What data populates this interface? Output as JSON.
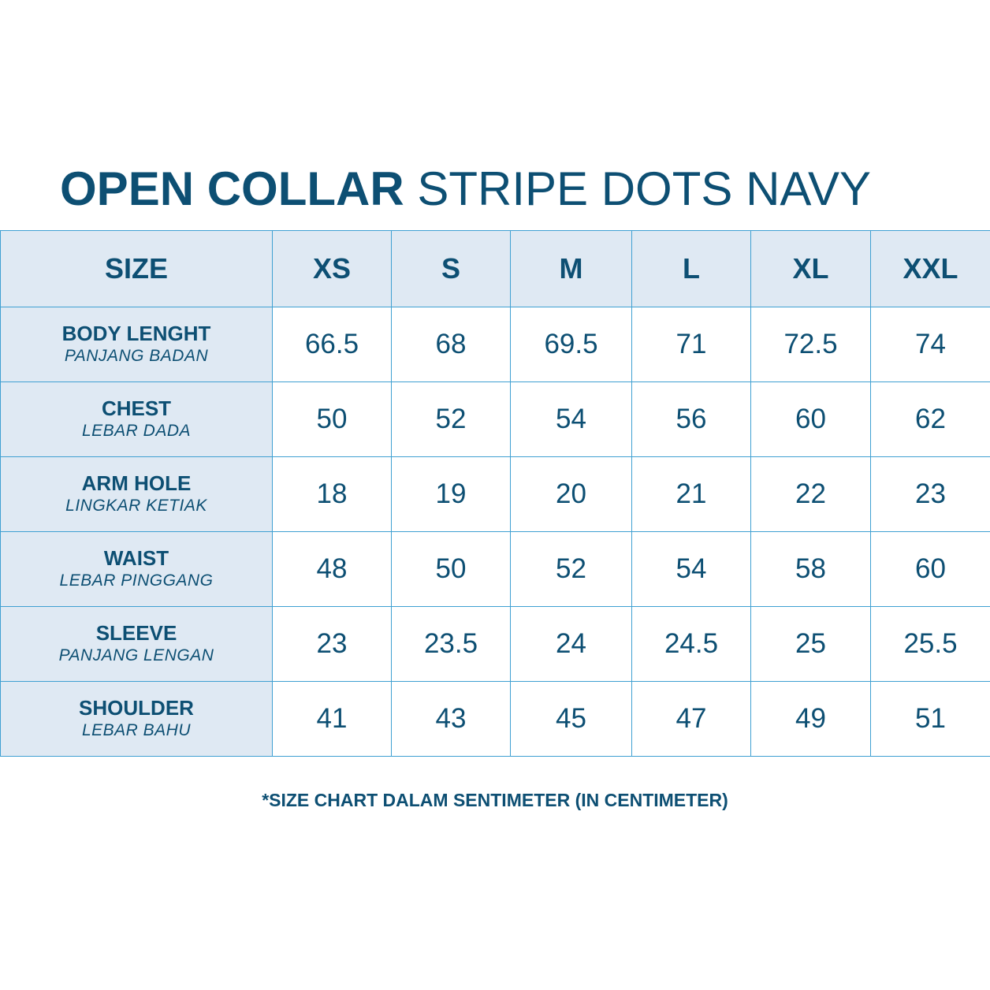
{
  "title": {
    "bold": "OPEN COLLAR",
    "light": "STRIPE DOTS NAVY"
  },
  "table": {
    "header": [
      "SIZE",
      "XS",
      "S",
      "M",
      "L",
      "XL",
      "XXL"
    ],
    "rows": [
      {
        "label": "BODY LENGHT",
        "sublabel": "PANJANG BADAN",
        "values": [
          "66.5",
          "68",
          "69.5",
          "71",
          "72.5",
          "74"
        ]
      },
      {
        "label": "CHEST",
        "sublabel": "LEBAR DADA",
        "values": [
          "50",
          "52",
          "54",
          "56",
          "60",
          "62"
        ]
      },
      {
        "label": "ARM HOLE",
        "sublabel": "LINGKAR KETIAK",
        "values": [
          "18",
          "19",
          "20",
          "21",
          "22",
          "23"
        ]
      },
      {
        "label": "WAIST",
        "sublabel": "LEBAR PINGGANG",
        "values": [
          "48",
          "50",
          "52",
          "54",
          "58",
          "60"
        ]
      },
      {
        "label": "SLEEVE",
        "sublabel": "PANJANG LENGAN",
        "values": [
          "23",
          "23.5",
          "24",
          "24.5",
          "25",
          "25.5"
        ]
      },
      {
        "label": "SHOULDER",
        "sublabel": "LEBAR BAHU",
        "values": [
          "41",
          "43",
          "45",
          "47",
          "49",
          "51"
        ]
      }
    ]
  },
  "footnote": "*SIZE CHART DALAM SENTIMETER (IN CENTIMETER)",
  "colors": {
    "text": "#0d4f73",
    "header_bg": "#dfe9f3",
    "border": "#3fa0d2"
  }
}
